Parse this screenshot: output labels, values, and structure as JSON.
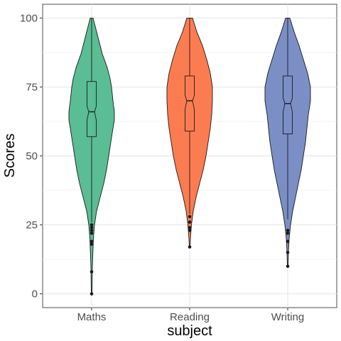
{
  "chart_data": {
    "type": "violin",
    "xlabel": "subject",
    "ylabel": "Scores",
    "categories": [
      "Maths",
      "Reading",
      "Writing"
    ],
    "ylim": [
      -5,
      105
    ],
    "yticks": [
      0,
      25,
      50,
      75,
      100
    ],
    "grid": true,
    "colors": {
      "Maths": "#5ABD94",
      "Reading": "#FC7C51",
      "Writing": "#7B8FC6"
    },
    "series": [
      {
        "name": "Maths",
        "box": {
          "q1": 57,
          "median": 66,
          "q3": 77,
          "notch_low": 63,
          "notch_high": 68,
          "whisker_low": 26,
          "whisker_high": 100
        },
        "outliers": [
          0,
          8,
          18,
          19,
          22,
          23,
          24,
          25
        ],
        "density": [
          [
            0,
            0.5
          ],
          [
            10,
            1
          ],
          [
            20,
            2.5
          ],
          [
            25,
            4
          ],
          [
            30,
            7
          ],
          [
            35,
            12
          ],
          [
            40,
            17
          ],
          [
            45,
            21
          ],
          [
            50,
            24
          ],
          [
            55,
            27
          ],
          [
            60,
            30
          ],
          [
            63,
            32
          ],
          [
            66,
            32
          ],
          [
            70,
            30
          ],
          [
            75,
            28
          ],
          [
            78,
            26
          ],
          [
            82,
            22
          ],
          [
            87,
            15
          ],
          [
            92,
            10
          ],
          [
            96,
            6
          ],
          [
            100,
            2
          ]
        ]
      },
      {
        "name": "Reading",
        "box": {
          "q1": 59,
          "median": 70,
          "q3": 79,
          "notch_low": 67,
          "notch_high": 72,
          "whisker_low": 29,
          "whisker_high": 100
        },
        "outliers": [
          17,
          23,
          24,
          26,
          28
        ],
        "density": [
          [
            17,
            0.5
          ],
          [
            20,
            1
          ],
          [
            25,
            2.5
          ],
          [
            30,
            5
          ],
          [
            35,
            9
          ],
          [
            40,
            14
          ],
          [
            45,
            19
          ],
          [
            50,
            23
          ],
          [
            55,
            26
          ],
          [
            60,
            29
          ],
          [
            65,
            31
          ],
          [
            70,
            32
          ],
          [
            75,
            32
          ],
          [
            80,
            29
          ],
          [
            85,
            24
          ],
          [
            90,
            18
          ],
          [
            95,
            10
          ],
          [
            100,
            4
          ]
        ]
      },
      {
        "name": "Writing",
        "box": {
          "q1": 58,
          "median": 69,
          "q3": 79,
          "notch_low": 66,
          "notch_high": 71,
          "whisker_low": 27,
          "whisker_high": 100
        },
        "outliers": [
          10,
          15,
          19,
          22,
          23
        ],
        "density": [
          [
            10,
            0.5
          ],
          [
            15,
            1
          ],
          [
            20,
            2
          ],
          [
            25,
            4
          ],
          [
            30,
            7
          ],
          [
            35,
            11
          ],
          [
            40,
            15
          ],
          [
            45,
            19
          ],
          [
            50,
            22
          ],
          [
            55,
            25
          ],
          [
            60,
            27
          ],
          [
            65,
            29
          ],
          [
            70,
            32
          ],
          [
            75,
            32
          ],
          [
            80,
            28
          ],
          [
            85,
            22
          ],
          [
            90,
            16
          ],
          [
            95,
            9
          ],
          [
            100,
            3
          ]
        ]
      }
    ]
  }
}
